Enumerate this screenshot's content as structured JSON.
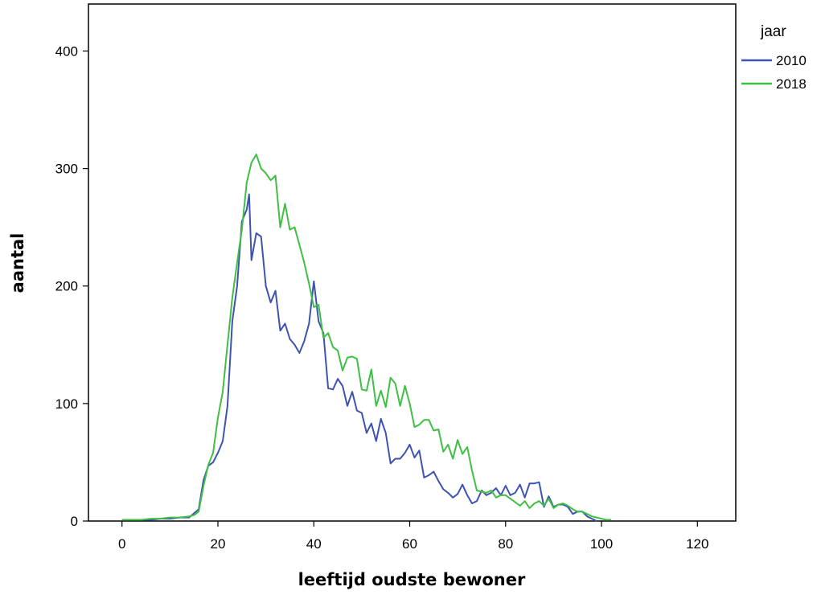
{
  "chart_data": {
    "type": "line",
    "title": "",
    "xlabel": "leeftijd oudste bewoner",
    "ylabel": "aantal",
    "xlim": [
      -7,
      128
    ],
    "ylim": [
      0,
      440
    ],
    "x_ticks": [
      0,
      20,
      40,
      60,
      80,
      100,
      120
    ],
    "y_ticks": [
      0,
      100,
      200,
      300,
      400
    ],
    "grid": false,
    "legend": {
      "title": "jaar",
      "placement": "right"
    },
    "series": [
      {
        "name": "2010",
        "color": "#3e53b1",
        "x": [
          0,
          2,
          4,
          6,
          8,
          10,
          12,
          14,
          16,
          17,
          18,
          19,
          20,
          21,
          22,
          23,
          24,
          25,
          26,
          26.5,
          27,
          28,
          29,
          30,
          31,
          32,
          33,
          34,
          35,
          36,
          37,
          38,
          39,
          40,
          41,
          42,
          43,
          44,
          45,
          46,
          47,
          48,
          49,
          50,
          51,
          52,
          53,
          54,
          55,
          56,
          57,
          58,
          59,
          60,
          61,
          62,
          63,
          64,
          65,
          66,
          67,
          68,
          69,
          70,
          71,
          72,
          73,
          74,
          75,
          76,
          77,
          78,
          79,
          80,
          81,
          82,
          83,
          84,
          85,
          86,
          87,
          88,
          89,
          90,
          91,
          92,
          93,
          94,
          95,
          96,
          97,
          98,
          99
        ],
        "values": [
          1,
          1,
          1,
          1,
          2,
          2,
          3,
          3,
          10,
          35,
          47,
          50,
          58,
          68,
          98,
          170,
          200,
          255,
          265,
          278,
          222,
          245,
          242,
          200,
          186,
          196,
          162,
          168,
          155,
          150,
          143,
          153,
          168,
          204,
          170,
          160,
          113,
          112,
          121,
          115,
          98,
          110,
          94,
          92,
          75,
          83,
          68,
          87,
          75,
          49,
          53,
          53,
          58,
          65,
          54,
          60,
          37,
          39,
          42,
          34,
          27,
          24,
          20,
          23,
          31,
          22,
          15,
          17,
          26,
          22,
          24,
          28,
          22,
          30,
          22,
          24,
          31,
          20,
          32,
          32,
          33,
          12,
          21,
          12,
          14,
          14,
          12,
          6,
          8,
          8,
          4,
          2,
          0
        ]
      },
      {
        "name": "2018",
        "color": "#3fbf43",
        "x": [
          0,
          2,
          4,
          6,
          8,
          10,
          12,
          14,
          15,
          16,
          17,
          18,
          19,
          20,
          21,
          22,
          23,
          24,
          25,
          26,
          27,
          28,
          29,
          30,
          31,
          32,
          33,
          34,
          35,
          36,
          37,
          38,
          39,
          40,
          41,
          42,
          43,
          44,
          45,
          46,
          47,
          48,
          49,
          50,
          51,
          52,
          53,
          54,
          55,
          56,
          57,
          58,
          59,
          60,
          61,
          62,
          63,
          64,
          65,
          66,
          67,
          68,
          69,
          70,
          71,
          72,
          73,
          74,
          75,
          76,
          77,
          78,
          79,
          80,
          81,
          82,
          83,
          84,
          85,
          86,
          87,
          88,
          89,
          90,
          91,
          92,
          93,
          94,
          95,
          96,
          97,
          98,
          99,
          100,
          101,
          102
        ],
        "values": [
          1,
          1,
          1,
          2,
          2,
          3,
          3,
          4,
          5,
          8,
          30,
          48,
          58,
          88,
          110,
          150,
          190,
          220,
          248,
          288,
          305,
          312,
          300,
          296,
          290,
          294,
          250,
          270,
          248,
          250,
          235,
          220,
          202,
          182,
          184,
          156,
          160,
          148,
          145,
          128,
          139,
          140,
          138,
          112,
          111,
          129,
          98,
          111,
          97,
          122,
          117,
          98,
          115,
          100,
          80,
          82,
          86,
          86,
          77,
          78,
          59,
          65,
          53,
          69,
          57,
          63,
          43,
          26,
          25,
          24,
          26,
          20,
          22,
          22,
          19,
          16,
          13,
          17,
          11,
          15,
          17,
          13,
          19,
          11,
          14,
          15,
          13,
          10,
          8,
          8,
          6,
          4,
          3,
          2,
          1,
          1
        ]
      }
    ]
  }
}
